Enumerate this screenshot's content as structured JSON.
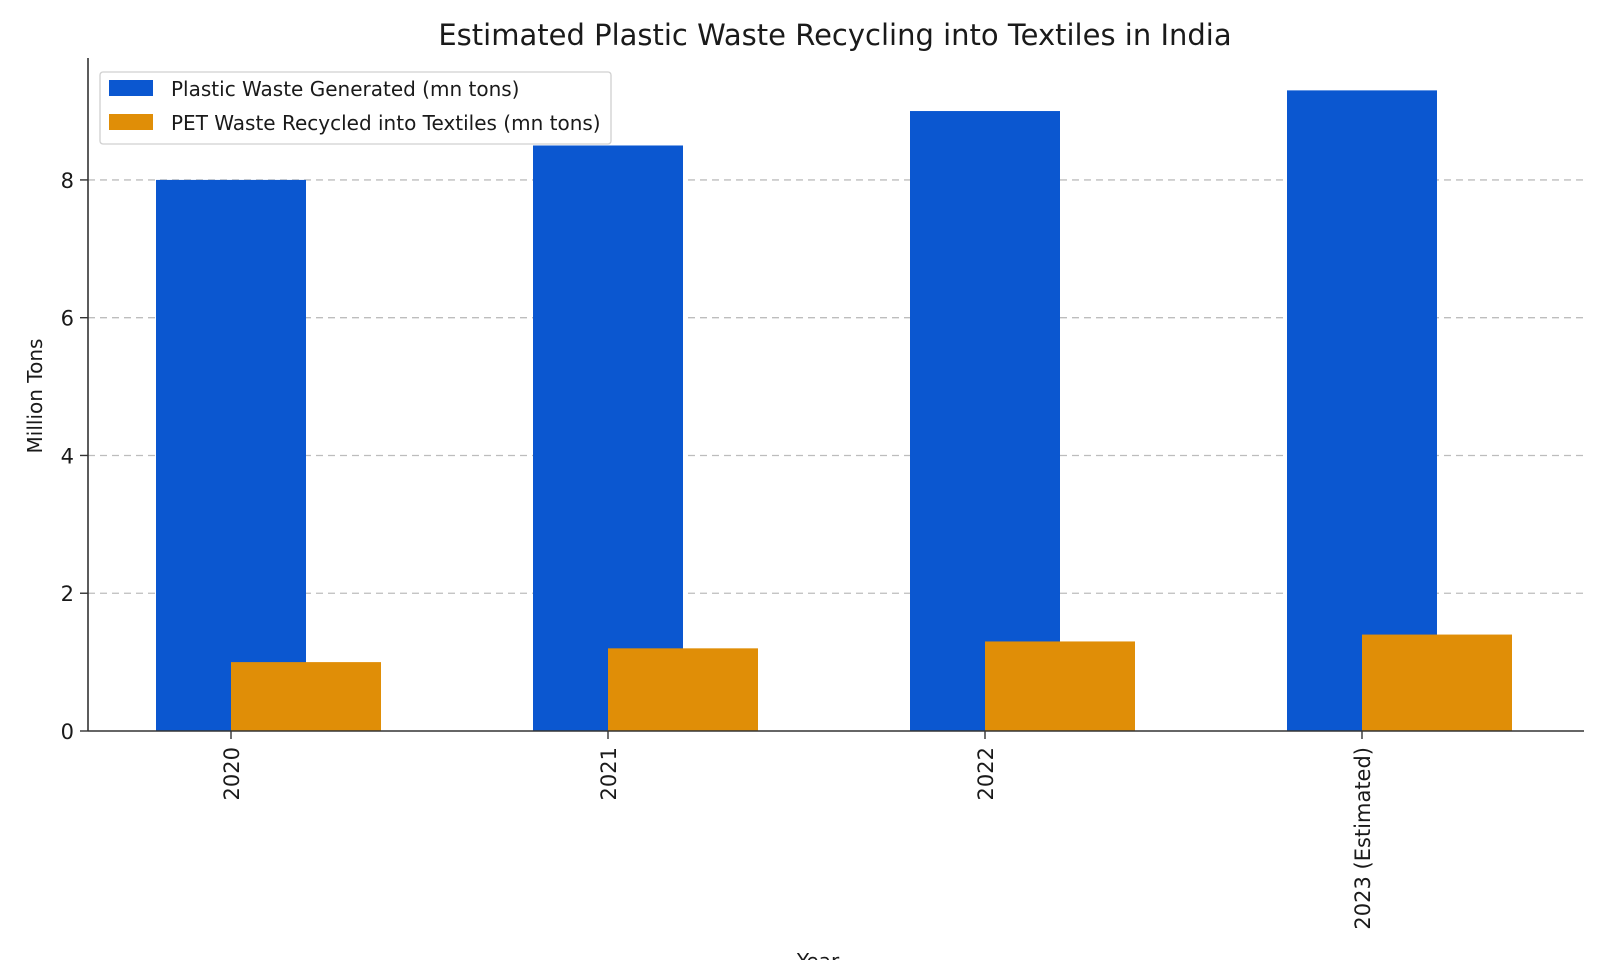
{
  "chart_data": {
    "type": "bar",
    "title": "Estimated Plastic Waste Recycling into Textiles in India",
    "xlabel": "Year",
    "ylabel": "Million Tons",
    "categories": [
      "2020",
      "2021",
      "2022",
      "2023 (Estimated)"
    ],
    "series": [
      {
        "name": "Plastic Waste Generated (mn tons)",
        "values": [
          8.0,
          8.5,
          9.0,
          9.3
        ],
        "color": "#0b57d0"
      },
      {
        "name": "PET Waste Recycled into Textiles (mn tons)",
        "values": [
          1.0,
          1.2,
          1.3,
          1.4
        ],
        "color": "#e08e07"
      }
    ],
    "ylim": [
      0,
      9.77
    ],
    "yticks": [
      0,
      2,
      4,
      6,
      8
    ],
    "grid": "y-dashed",
    "legend_position": "top-left"
  }
}
